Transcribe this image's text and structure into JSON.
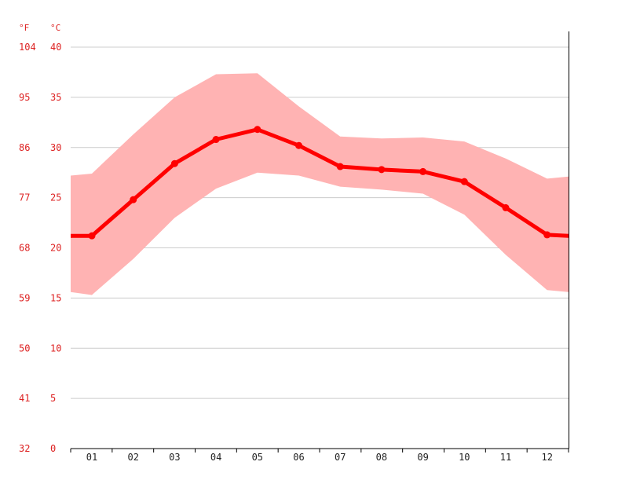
{
  "chart_data": {
    "type": "line",
    "units": {
      "left": "°F",
      "right": "°C"
    },
    "categories": [
      "01",
      "02",
      "03",
      "04",
      "05",
      "06",
      "07",
      "08",
      "09",
      "10",
      "11",
      "12"
    ],
    "series": [
      {
        "values": [
          21.2,
          24.8,
          28.4,
          30.8,
          31.8,
          30.2,
          28.1,
          27.8,
          27.6,
          26.6,
          24.0,
          21.3
        ]
      }
    ],
    "band": {
      "max": [
        27.4,
        31.3,
        35.0,
        37.3,
        37.4,
        34.1,
        31.1,
        30.9,
        31.0,
        30.6,
        28.9,
        26.9
      ],
      "min": [
        15.3,
        18.9,
        23.0,
        25.9,
        27.5,
        27.2,
        26.1,
        25.8,
        25.4,
        23.3,
        19.3,
        15.8
      ],
      "edge": {
        "start_max": 27.2,
        "end_max": 27.1,
        "start_min": 15.6,
        "end_min": 15.6
      }
    },
    "line_edge": {
      "start": 21.2,
      "end": 21.2
    },
    "y_ticks": [
      {
        "c": "0",
        "f": "32"
      },
      {
        "c": "5",
        "f": "41"
      },
      {
        "c": "10",
        "f": "50"
      },
      {
        "c": "15",
        "f": "59"
      },
      {
        "c": "20",
        "f": "68"
      },
      {
        "c": "25",
        "f": "77"
      },
      {
        "c": "30",
        "f": "86"
      },
      {
        "c": "35",
        "f": "95"
      },
      {
        "c": "40",
        "f": "104"
      }
    ],
    "ylim": [
      0,
      40
    ],
    "grid": true,
    "colors": {
      "line": "#ff0000",
      "band": "#ffb3b3",
      "labels": "#dd2222",
      "grid": "#cccccc"
    }
  }
}
